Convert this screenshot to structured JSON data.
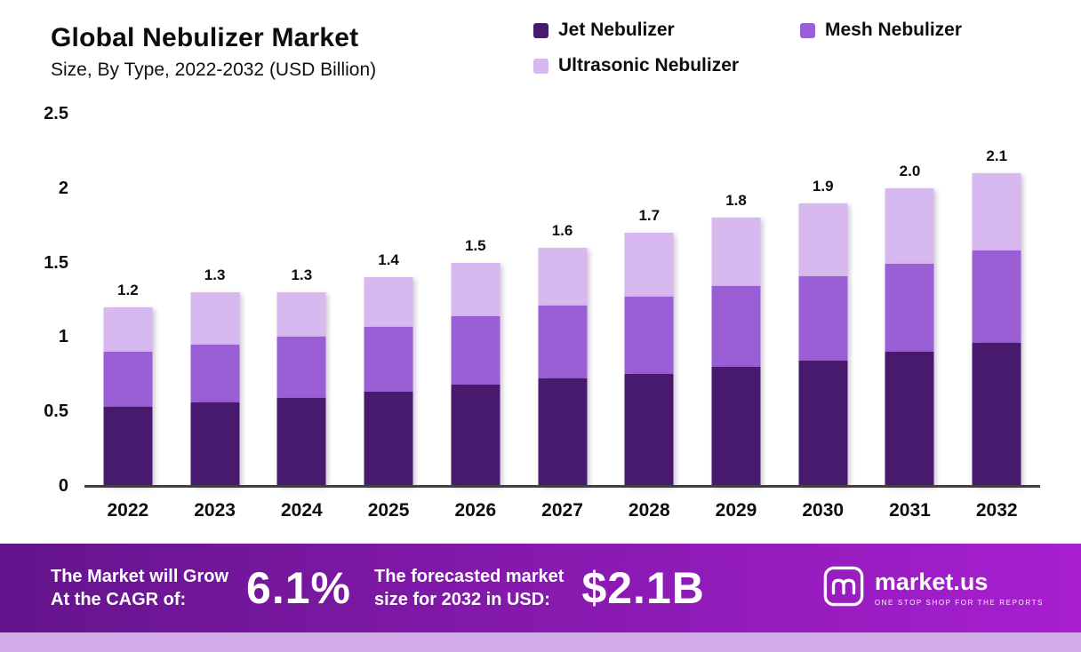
{
  "header": {
    "title": "Global Nebulizer Market",
    "subtitle": "Size, By Type, 2022-2032 (USD Billion)"
  },
  "legend": {
    "items": [
      {
        "label": "Jet Nebulizer",
        "color": "#471a6e"
      },
      {
        "label": "Mesh Nebulizer",
        "color": "#9b5fd5"
      },
      {
        "label": "Ultrasonic Nebulizer",
        "color": "#d7b9ef"
      }
    ]
  },
  "chart_data": {
    "type": "bar",
    "stacked": true,
    "title": "Global Nebulizer Market Size, By Type, 2022-2032 (USD Billion)",
    "categories": [
      "2022",
      "2023",
      "2024",
      "2025",
      "2026",
      "2027",
      "2028",
      "2029",
      "2030",
      "2031",
      "2032"
    ],
    "series": [
      {
        "name": "Jet Nebulizer",
        "color": "#471a6e",
        "values": [
          0.53,
          0.56,
          0.59,
          0.63,
          0.68,
          0.72,
          0.75,
          0.8,
          0.84,
          0.9,
          0.96
        ]
      },
      {
        "name": "Mesh Nebulizer",
        "color": "#9b5fd5",
        "values": [
          0.37,
          0.39,
          0.41,
          0.44,
          0.46,
          0.49,
          0.52,
          0.54,
          0.57,
          0.59,
          0.62
        ]
      },
      {
        "name": "Ultrasonic Nebulizer",
        "color": "#d7b9ef",
        "values": [
          0.3,
          0.35,
          0.3,
          0.33,
          0.36,
          0.39,
          0.43,
          0.46,
          0.49,
          0.51,
          0.52
        ]
      }
    ],
    "totals": [
      1.2,
      1.3,
      1.3,
      1.4,
      1.5,
      1.6,
      1.7,
      1.8,
      1.9,
      2.0,
      2.1
    ],
    "total_labels": [
      "1.2",
      "1.3",
      "1.3",
      "1.4",
      "1.5",
      "1.6",
      "1.7",
      "1.8",
      "1.9",
      "2.0",
      "2.1"
    ],
    "xlabel": "",
    "ylabel": "",
    "ylim": [
      0,
      2.5
    ],
    "yticks": [
      0,
      0.5,
      1,
      1.5,
      2,
      2.5
    ],
    "grid": false,
    "legend_position": "top-right"
  },
  "banner": {
    "cagr_label_line1": "The Market will Grow",
    "cagr_label_line2": "At the CAGR of:",
    "cagr_value": "6.1%",
    "forecast_label_line1": "The forecasted market",
    "forecast_label_line2": "size for 2032 in USD:",
    "forecast_value": "$2.1B",
    "brand": {
      "name": "market.us",
      "tagline": "ONE STOP SHOP FOR THE REPORTS"
    },
    "gradient": [
      "#64148c",
      "#a81fd0"
    ],
    "strip_color": "#d2abe9"
  }
}
